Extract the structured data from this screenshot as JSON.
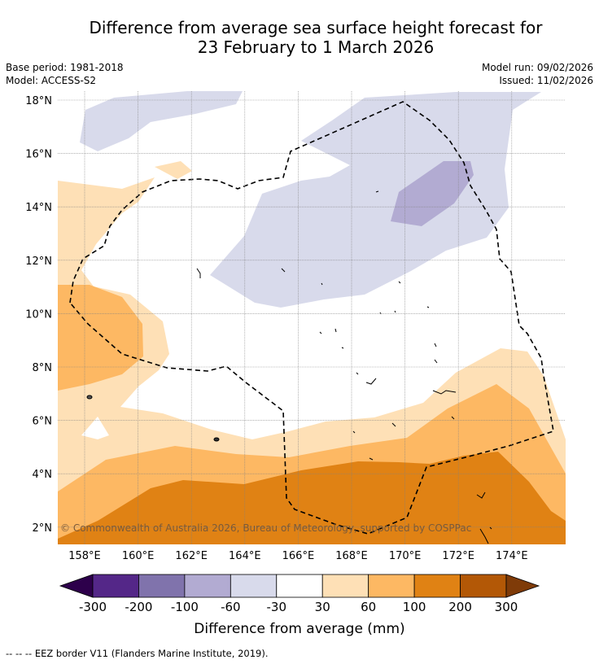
{
  "title": {
    "line1": "Difference from average sea surface height forecast for",
    "line2": "23 February to 1 March 2026"
  },
  "meta": {
    "base_period": "Base period: 1981-2018",
    "model": "Model: ACCESS-S2",
    "model_run": "Model run: 09/02/2026",
    "issued": "Issued: 11/02/2026"
  },
  "map": {
    "lat_labels": [
      "18°N",
      "16°N",
      "14°N",
      "12°N",
      "10°N",
      "8°N",
      "6°N",
      "4°N",
      "2°N"
    ],
    "lon_labels": [
      "158°E",
      "160°E",
      "162°E",
      "164°E",
      "166°E",
      "168°E",
      "170°E",
      "172°E",
      "174°E"
    ],
    "copyright": "© Commonwealth of Australia 2026, Bureau of Meteorology, supported by COSPPac"
  },
  "colorbar": {
    "ticks": [
      "-300",
      "-200",
      "-100",
      "-60",
      "-30",
      "30",
      "60",
      "100",
      "200",
      "300"
    ],
    "colors": {
      "below_-300": "#2d004b",
      "-300_-200": "#542788",
      "-200_-100": "#8073ac",
      "-100_-60": "#b2abd2",
      "-60_-30": "#d8daeb",
      "-30_30": "#ffffff",
      "30_60": "#fee0b6",
      "60_100": "#fdb863",
      "100_200": "#e08214",
      "200_300": "#b35806",
      "above_300": "#7f3b08"
    },
    "label": "Difference from average (mm)"
  },
  "footer": {
    "legend": "--  --  -- EEZ border V11 (Flanders Marine Institute, 2019)."
  }
}
